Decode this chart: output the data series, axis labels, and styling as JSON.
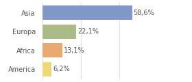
{
  "categories": [
    "Asia",
    "Europa",
    "Africa",
    "America"
  ],
  "values": [
    58.6,
    22.1,
    13.1,
    6.2
  ],
  "labels": [
    "58,6%",
    "22,1%",
    "13,1%",
    "6,2%"
  ],
  "bar_colors": [
    "#8098c8",
    "#aabb88",
    "#e8a870",
    "#f0d878"
  ],
  "background_color": "#ffffff",
  "xlim": [
    0,
    75
  ],
  "bar_height": 0.75,
  "label_fontsize": 7,
  "tick_fontsize": 7,
  "grid_color": "#dddddd",
  "text_color": "#555555",
  "grid_xticks": [
    0,
    25,
    50,
    75
  ]
}
